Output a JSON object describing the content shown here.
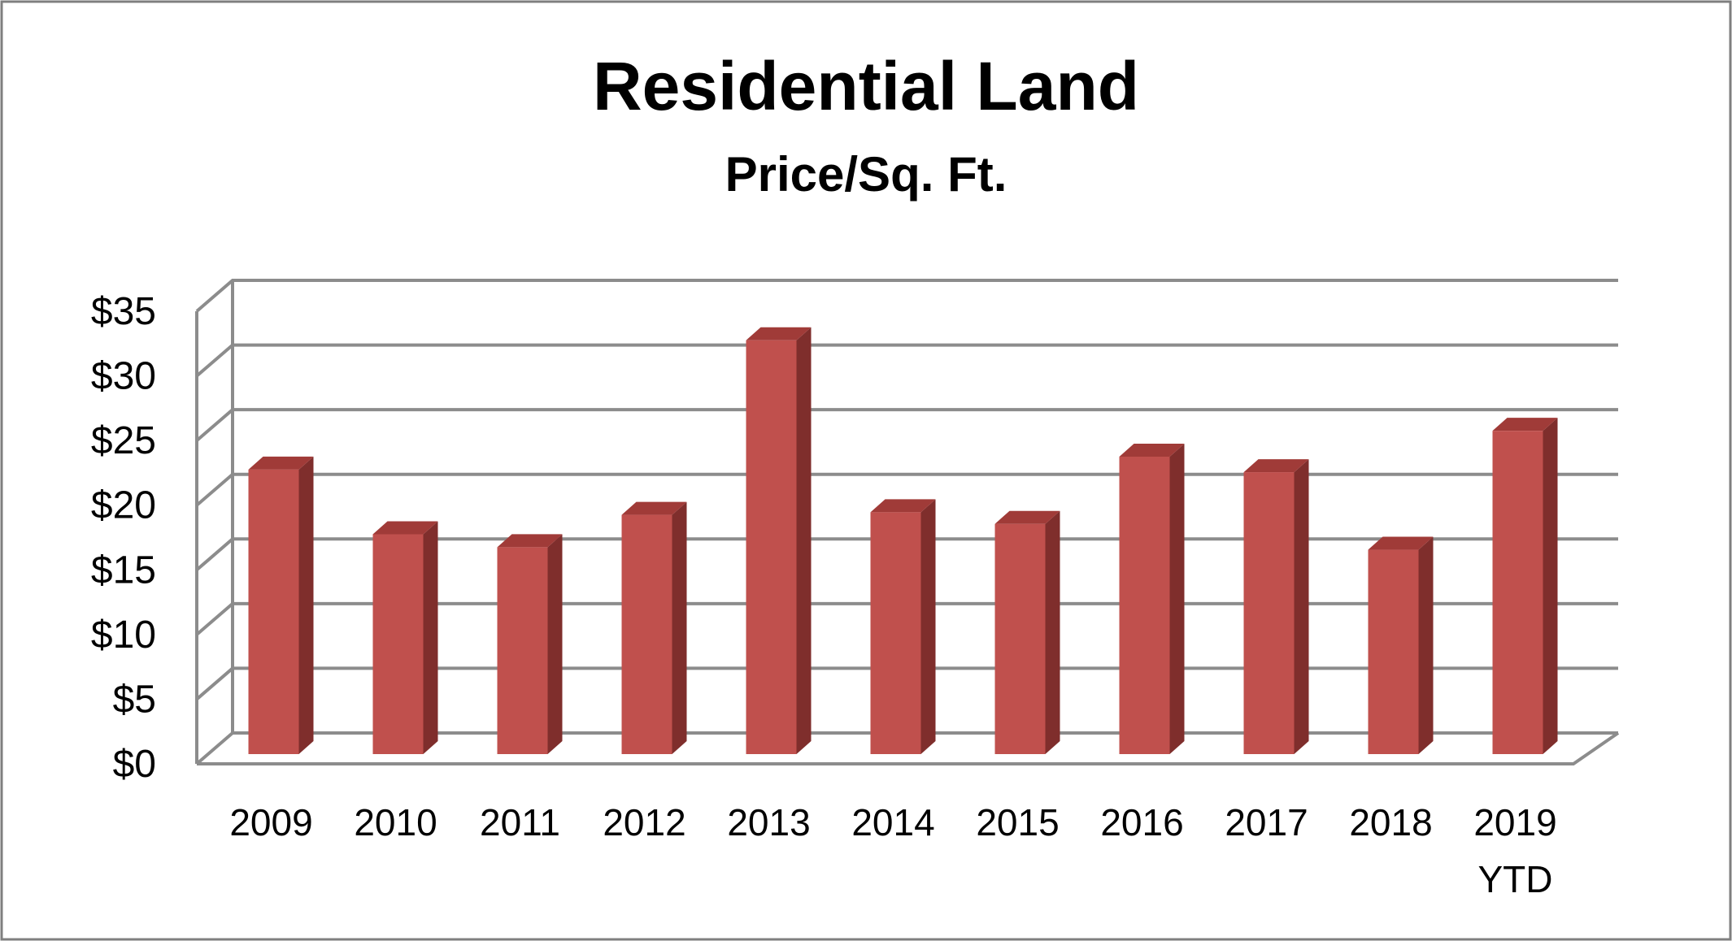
{
  "chart_data": {
    "type": "bar",
    "title": "Residential Land",
    "subtitle": "Price/Sq. Ft.",
    "categories": [
      [
        "2009"
      ],
      [
        "2010"
      ],
      [
        "2011"
      ],
      [
        "2012"
      ],
      [
        "2013"
      ],
      [
        "2014"
      ],
      [
        "2015"
      ],
      [
        "2016"
      ],
      [
        "2017"
      ],
      [
        "2018"
      ],
      [
        "2019",
        "YTD"
      ]
    ],
    "values": [
      22,
      17,
      16,
      18.5,
      32,
      18.7,
      17.8,
      23,
      21.8,
      15.8,
      25
    ],
    "ylim": [
      0,
      35
    ],
    "yticks": [
      0,
      5,
      10,
      15,
      20,
      25,
      30,
      35
    ],
    "ytick_prefix": "$",
    "grid": true,
    "legend": "none",
    "colors": {
      "bar_front": "#c0504d",
      "bar_side": "#7f2e2c",
      "bar_top": "#a03b38",
      "grid": "#8c8c8c",
      "frame": "#7f7f7f"
    }
  }
}
